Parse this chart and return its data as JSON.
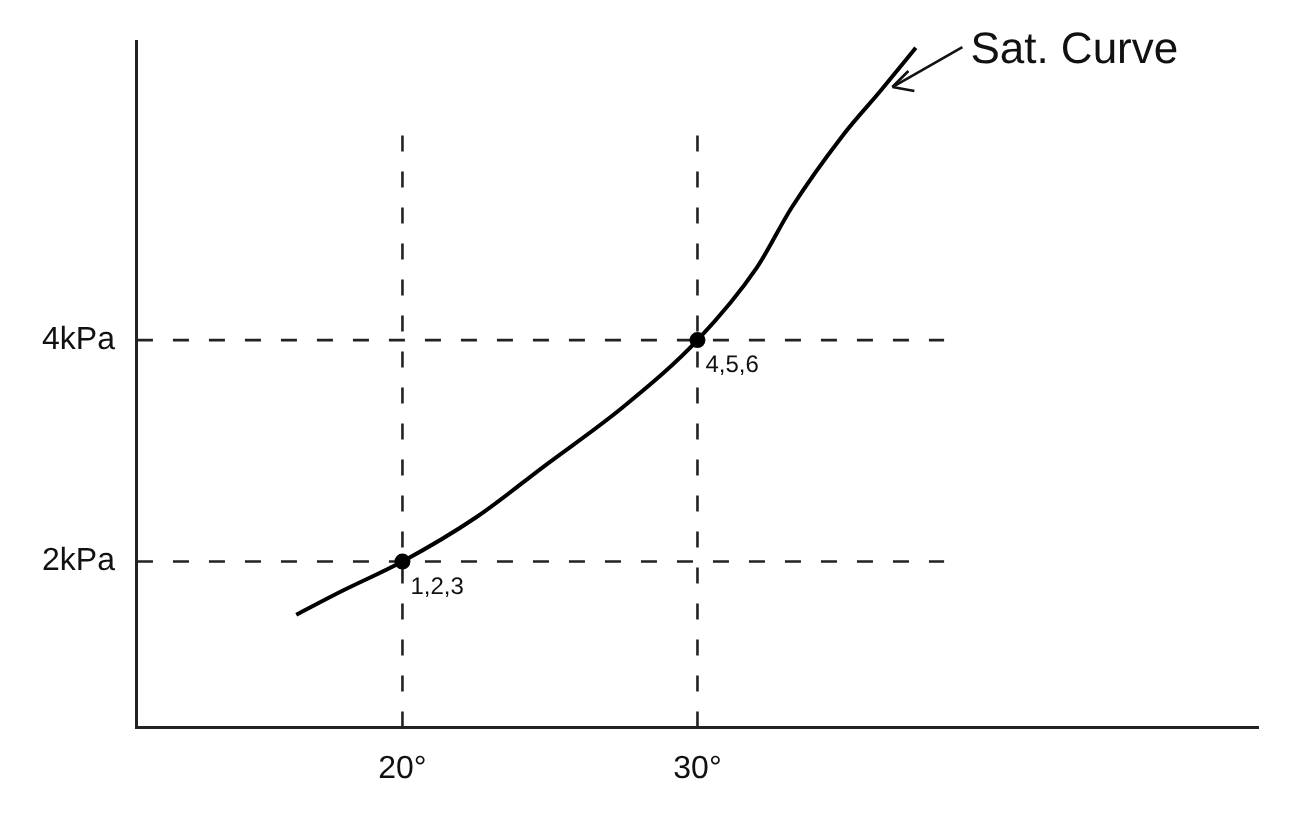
{
  "chart_data": {
    "type": "line",
    "xlim": [
      11,
      49
    ],
    "ylim": [
      0.5,
      6.7
    ],
    "xticks": [
      {
        "value": 20,
        "label": "20°"
      },
      {
        "value": 30,
        "label": "30°"
      }
    ],
    "yticks": [
      {
        "value": 2,
        "label": "2kPa"
      },
      {
        "value": 4,
        "label": "4kPa"
      }
    ],
    "grid": false,
    "legend": false,
    "series": [
      {
        "color": "#000000",
        "marker": "none",
        "x": [
          16.4,
          18,
          20,
          22.5,
          24.8,
          27.5,
          30,
          32,
          33.2,
          34.9,
          36.2,
          37.4
        ],
        "values": [
          1.52,
          1.74,
          2,
          2.4,
          2.86,
          3.4,
          4,
          4.65,
          5.2,
          5.84,
          6.25,
          6.64
        ]
      },
      {
        "type": "scatter",
        "color": "#000000",
        "marker": "circle",
        "x": [
          20,
          30
        ],
        "values": [
          2,
          4
        ]
      }
    ],
    "ref_lines": [
      {
        "axis": "x",
        "value": 20,
        "line_style": "dashed"
      },
      {
        "axis": "x",
        "value": 30,
        "line_style": "dashed"
      },
      {
        "axis": "y",
        "value": 2,
        "line_style": "dashed"
      },
      {
        "axis": "y",
        "value": 4,
        "line_style": "dashed"
      }
    ],
    "annotations": [
      {
        "text": "Sat. Curve",
        "x": 36.2,
        "y": 6.25
      },
      {
        "text": "1,2,3",
        "x": 20,
        "y": 2
      },
      {
        "text": "4,5,6",
        "x": 30,
        "y": 4
      }
    ]
  }
}
